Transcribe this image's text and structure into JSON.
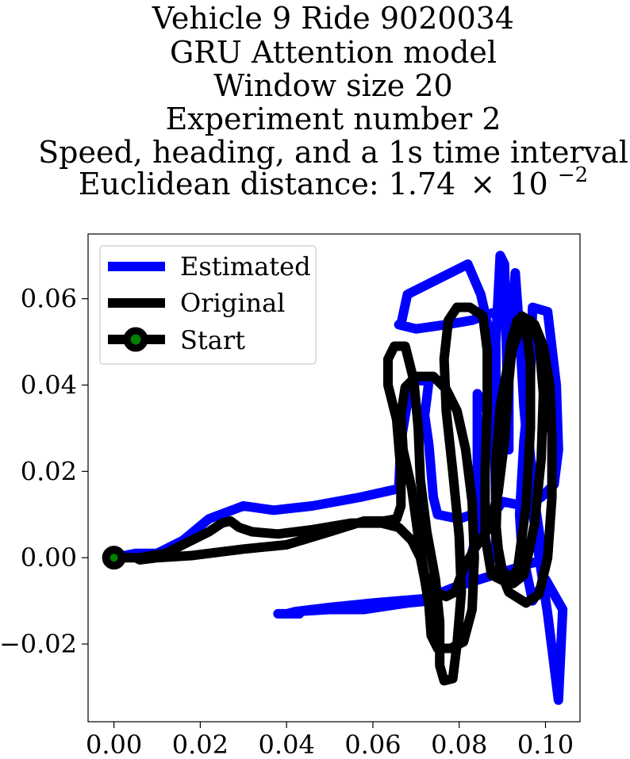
{
  "chart_data": {
    "type": "line",
    "title_lines": [
      "Vehicle 9 Ride 9020034",
      "GRU Attention model",
      "Window size 20",
      "Experiment number 2",
      "Speed, heading, and a 1s time interval"
    ],
    "title_distance_prefix": "Euclidean distance: 1.74",
    "title_distance_times": "×",
    "title_distance_base": "10",
    "title_distance_exponent": "−2",
    "xlabel": "",
    "ylabel": "",
    "xlim": [
      -0.006,
      0.108
    ],
    "ylim": [
      -0.038,
      0.075
    ],
    "x_ticks": [
      0.0,
      0.02,
      0.04,
      0.06,
      0.08,
      0.1
    ],
    "x_tick_labels": [
      "0.00",
      "0.02",
      "0.04",
      "0.06",
      "0.08",
      "0.10"
    ],
    "y_ticks": [
      -0.02,
      0.0,
      0.02,
      0.04,
      0.06
    ],
    "y_tick_labels": [
      "−0.02",
      "0.00",
      "0.02",
      "0.04",
      "0.06"
    ],
    "grid": false,
    "legend_position": "top-left",
    "series": [
      {
        "name": "Estimated",
        "color": "#0000ff",
        "points": [
          [
            0.0,
            0.0
          ],
          [
            0.005,
            0.001
          ],
          [
            0.01,
            0.001
          ],
          [
            0.016,
            0.004
          ],
          [
            0.022,
            0.009
          ],
          [
            0.03,
            0.012
          ],
          [
            0.037,
            0.011
          ],
          [
            0.046,
            0.012
          ],
          [
            0.057,
            0.014
          ],
          [
            0.066,
            0.016
          ],
          [
            0.0665,
            0.027
          ],
          [
            0.068,
            0.036
          ],
          [
            0.069,
            0.041
          ],
          [
            0.0705,
            0.041
          ],
          [
            0.073,
            0.041
          ],
          [
            0.072,
            0.033
          ],
          [
            0.073,
            0.026
          ],
          [
            0.074,
            0.014
          ],
          [
            0.075,
            0.01
          ],
          [
            0.08,
            0.009
          ],
          [
            0.083,
            0.01
          ],
          [
            0.088,
            0.01
          ],
          [
            0.09,
            0.013
          ],
          [
            0.095,
            0.012
          ],
          [
            0.099,
            0.014
          ],
          [
            0.102,
            0.017
          ],
          [
            0.103,
            0.025
          ],
          [
            0.1025,
            0.04
          ],
          [
            0.1005,
            0.057
          ],
          [
            0.097,
            0.058
          ],
          [
            0.0965,
            0.042
          ],
          [
            0.095,
            0.027
          ],
          [
            0.094,
            0.01
          ],
          [
            0.0945,
            0.002
          ],
          [
            0.097,
            -0.01
          ],
          [
            0.1,
            -0.005
          ],
          [
            0.104,
            -0.012
          ],
          [
            0.103,
            -0.033
          ],
          [
            0.1005,
            -0.013
          ],
          [
            0.0975,
            0.007
          ],
          [
            0.095,
            0.035
          ],
          [
            0.094,
            0.052
          ],
          [
            0.093,
            0.066
          ],
          [
            0.0915,
            0.046
          ],
          [
            0.0915,
            0.025
          ],
          [
            0.0905,
            0.068
          ],
          [
            0.0895,
            0.07
          ],
          [
            0.0885,
            0.05
          ],
          [
            0.0885,
            0.03
          ],
          [
            0.0855,
            0.036
          ],
          [
            0.0842,
            0.038
          ],
          [
            0.0842,
            0.022
          ],
          [
            0.084,
            0.005
          ],
          [
            0.081,
            -0.006
          ],
          [
            0.076,
            -0.008
          ],
          [
            0.073,
            -0.01
          ],
          [
            0.068,
            -0.0105
          ],
          [
            0.058,
            -0.012
          ],
          [
            0.05,
            -0.012
          ],
          [
            0.042,
            -0.0125
          ],
          [
            0.04,
            -0.013
          ],
          [
            0.038,
            -0.013
          ],
          [
            0.043,
            -0.013
          ],
          [
            0.042,
            -0.0125
          ],
          [
            0.05,
            -0.0115
          ],
          [
            0.06,
            -0.0105
          ],
          [
            0.072,
            -0.0095
          ],
          [
            0.08,
            -0.0065
          ],
          [
            0.088,
            -0.004
          ],
          [
            0.096,
            -0.0015
          ],
          [
            0.0995,
            -0.0005
          ],
          [
            0.0975,
            0.013
          ],
          [
            0.0955,
            0.034
          ],
          [
            0.0935,
            0.055
          ],
          [
            0.0915,
            0.057
          ],
          [
            0.0885,
            0.057
          ],
          [
            0.083,
            0.055
          ],
          [
            0.077,
            0.054
          ],
          [
            0.07,
            0.053
          ],
          [
            0.066,
            0.054
          ],
          [
            0.0665,
            0.054
          ],
          [
            0.068,
            0.061
          ],
          [
            0.074,
            0.064
          ],
          [
            0.082,
            0.068
          ],
          [
            0.085,
            0.061
          ],
          [
            0.0875,
            0.05
          ],
          [
            0.088,
            0.036
          ],
          [
            0.0885,
            0.012
          ],
          [
            0.0885,
            0.0
          ]
        ]
      },
      {
        "name": "Original",
        "color": "#000000",
        "points": [
          [
            0.0,
            0.0
          ],
          [
            0.006,
            0.0
          ],
          [
            0.012,
            0.001
          ],
          [
            0.018,
            0.004
          ],
          [
            0.022,
            0.006
          ],
          [
            0.025,
            0.008
          ],
          [
            0.027,
            0.0085
          ],
          [
            0.029,
            0.007
          ],
          [
            0.032,
            0.006
          ],
          [
            0.038,
            0.0055
          ],
          [
            0.046,
            0.0065
          ],
          [
            0.055,
            0.008
          ],
          [
            0.062,
            0.008
          ],
          [
            0.066,
            0.007
          ],
          [
            0.069,
            0.004
          ],
          [
            0.071,
            0.0
          ],
          [
            0.072,
            -0.005
          ],
          [
            0.073,
            -0.011
          ],
          [
            0.0735,
            -0.018
          ],
          [
            0.075,
            -0.021
          ],
          [
            0.078,
            -0.021
          ],
          [
            0.081,
            -0.0195
          ],
          [
            0.083,
            -0.012
          ],
          [
            0.0835,
            0.0
          ],
          [
            0.083,
            0.013
          ],
          [
            0.0815,
            0.025
          ],
          [
            0.0795,
            0.034
          ],
          [
            0.077,
            0.039
          ],
          [
            0.074,
            0.042
          ],
          [
            0.07,
            0.042
          ],
          [
            0.0675,
            0.0395
          ],
          [
            0.0665,
            0.033
          ],
          [
            0.067,
            0.025
          ],
          [
            0.069,
            0.016
          ],
          [
            0.0705,
            0.005
          ],
          [
            0.072,
            -0.004
          ],
          [
            0.0745,
            -0.008
          ],
          [
            0.077,
            -0.009
          ],
          [
            0.079,
            -0.008
          ],
          [
            0.081,
            -0.0025
          ],
          [
            0.0835,
            0.002
          ],
          [
            0.087,
            0.007
          ],
          [
            0.089,
            0.015
          ],
          [
            0.0905,
            0.027
          ],
          [
            0.0915,
            0.041
          ],
          [
            0.0925,
            0.051
          ],
          [
            0.0945,
            0.056
          ],
          [
            0.0975,
            0.054
          ],
          [
            0.0995,
            0.049
          ],
          [
            0.101,
            0.04
          ],
          [
            0.1015,
            0.028
          ],
          [
            0.1015,
            0.014
          ],
          [
            0.1005,
            0.0
          ],
          [
            0.0985,
            -0.0085
          ],
          [
            0.0955,
            -0.0105
          ],
          [
            0.0915,
            -0.008
          ],
          [
            0.0895,
            -0.003
          ],
          [
            0.0885,
            0.008
          ],
          [
            0.0885,
            0.022
          ],
          [
            0.0895,
            0.035
          ],
          [
            0.0915,
            0.046
          ],
          [
            0.094,
            0.053
          ],
          [
            0.0965,
            0.055
          ],
          [
            0.0985,
            0.05
          ],
          [
            0.0995,
            0.038
          ],
          [
            0.099,
            0.023
          ],
          [
            0.0975,
            0.008
          ],
          [
            0.095,
            -0.004
          ],
          [
            0.0925,
            -0.006
          ],
          [
            0.09,
            -0.003
          ],
          [
            0.0885,
            0.005
          ],
          [
            0.089,
            0.02
          ],
          [
            0.0905,
            0.038
          ],
          [
            0.092,
            0.05
          ],
          [
            0.0935,
            0.055
          ],
          [
            0.0955,
            0.053
          ],
          [
            0.0965,
            0.045
          ],
          [
            0.0965,
            0.03
          ],
          [
            0.0955,
            0.012
          ],
          [
            0.0935,
            -0.003
          ],
          [
            0.0905,
            -0.0055
          ],
          [
            0.0875,
            -0.004
          ],
          [
            0.086,
            0.005
          ],
          [
            0.086,
            0.02
          ],
          [
            0.0865,
            0.035
          ],
          [
            0.0865,
            0.048
          ],
          [
            0.0855,
            0.056
          ],
          [
            0.0825,
            0.058
          ],
          [
            0.0795,
            0.058
          ],
          [
            0.0775,
            0.055
          ],
          [
            0.0765,
            0.046
          ],
          [
            0.077,
            0.034
          ],
          [
            0.0785,
            0.02
          ],
          [
            0.08,
            0.005
          ],
          [
            0.0805,
            -0.008
          ],
          [
            0.0795,
            -0.02
          ],
          [
            0.0785,
            -0.028
          ],
          [
            0.0765,
            -0.0285
          ],
          [
            0.0755,
            -0.025
          ],
          [
            0.0755,
            -0.015
          ],
          [
            0.0745,
            -0.005
          ],
          [
            0.0725,
            0.006
          ],
          [
            0.071,
            0.018
          ],
          [
            0.0705,
            0.03
          ],
          [
            0.0695,
            0.041
          ],
          [
            0.0675,
            0.049
          ],
          [
            0.065,
            0.049
          ],
          [
            0.0635,
            0.046
          ],
          [
            0.0635,
            0.04
          ],
          [
            0.0655,
            0.032
          ],
          [
            0.0665,
            0.02
          ],
          [
            0.0665,
            0.012
          ],
          [
            0.0655,
            0.009
          ],
          [
            0.0625,
            0.0085
          ],
          [
            0.058,
            0.0085
          ],
          [
            0.05,
            0.006
          ],
          [
            0.04,
            0.003
          ],
          [
            0.03,
            0.002
          ],
          [
            0.018,
            0.0005
          ],
          [
            0.01,
            0.0
          ],
          [
            0.006,
            -0.0005
          ],
          [
            0.005,
            0.0
          ],
          [
            0.0,
            0.0
          ]
        ]
      }
    ],
    "start": {
      "name": "Start",
      "x": 0.0,
      "y": 0.0,
      "marker_face": "#008000",
      "marker_edge": "#000000"
    },
    "legend": {
      "entries": [
        "Estimated",
        "Original",
        "Start"
      ]
    }
  }
}
